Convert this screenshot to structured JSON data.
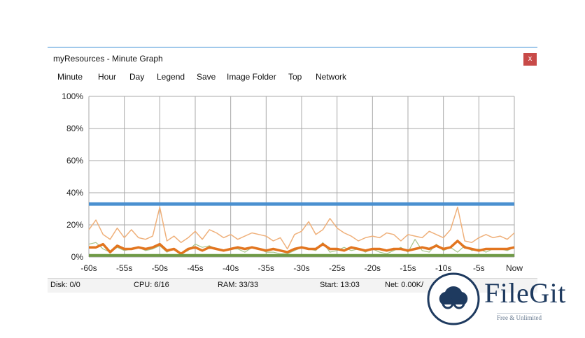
{
  "window": {
    "title": "myResources - Minute Graph",
    "close_label": "x"
  },
  "menu": [
    "Minute",
    "Hour",
    "Day",
    "Legend",
    "Save",
    "Image Folder",
    "Top",
    "Network"
  ],
  "colors": {
    "blue": "#4a90d0",
    "orange": "#e2751f",
    "light_orange": "#efb07a",
    "green": "#6f9a45",
    "light_green": "#a7c48a",
    "grid": "#a8a8a8"
  },
  "chart_data": {
    "type": "line",
    "ylim": [
      0,
      100
    ],
    "yticks": [
      "0%",
      "20%",
      "40%",
      "60%",
      "80%",
      "100%"
    ],
    "xticks": [
      "-60s",
      "-55s",
      "-50s",
      "-45s",
      "-40s",
      "-35s",
      "-30s",
      "-25s",
      "-20s",
      "-15s",
      "-10s",
      "-5s",
      "Now"
    ],
    "xlim": [
      -60,
      0
    ],
    "grid": true,
    "series": [
      {
        "values": [
          33,
          33,
          33,
          33,
          33,
          33,
          33,
          33,
          33,
          33,
          33,
          33,
          33,
          33,
          33,
          33,
          33,
          33,
          33,
          33,
          33,
          33,
          33,
          33,
          33,
          33,
          33,
          33,
          33,
          33,
          33,
          33,
          33,
          33,
          33,
          33,
          33,
          33,
          33,
          33,
          33,
          33,
          33,
          33,
          33,
          33,
          33,
          33,
          33,
          33,
          33,
          33,
          33,
          33,
          33,
          33,
          33,
          33,
          33,
          33,
          33
        ]
      },
      {
        "values": [
          17,
          23,
          14,
          11,
          18,
          12,
          17,
          12,
          11,
          13,
          31,
          10,
          13,
          9,
          12,
          16,
          11,
          17,
          15,
          12,
          14,
          11,
          13,
          15,
          14,
          13,
          10,
          12,
          5,
          14,
          16,
          22,
          14,
          17,
          24,
          18,
          15,
          13,
          10,
          12,
          13,
          12,
          15,
          14,
          10,
          14,
          13,
          12,
          16,
          14,
          12,
          17,
          31,
          10,
          9,
          12,
          14,
          12,
          13,
          11,
          15
        ]
      },
      {
        "values": [
          6,
          6,
          8,
          3,
          7,
          5,
          5,
          6,
          5,
          6,
          8,
          4,
          5,
          2,
          5,
          6,
          4,
          6,
          5,
          4,
          5,
          6,
          5,
          6,
          5,
          4,
          5,
          4,
          3,
          5,
          6,
          5,
          5,
          8,
          5,
          5,
          4,
          6,
          5,
          4,
          5,
          5,
          4,
          5,
          5,
          4,
          5,
          6,
          5,
          7,
          5,
          6,
          10,
          6,
          5,
          4,
          5,
          5,
          5,
          5,
          6
        ]
      },
      {
        "values": [
          8,
          9,
          5,
          3,
          6,
          4,
          5,
          6,
          4,
          5,
          7,
          3,
          5,
          2,
          4,
          8,
          6,
          7,
          5,
          4,
          5,
          5,
          3,
          6,
          5,
          3,
          3,
          2,
          2,
          4,
          6,
          5,
          4,
          9,
          3,
          4,
          6,
          4,
          5,
          3,
          5,
          3,
          2,
          4,
          6,
          3,
          11,
          4,
          3,
          8,
          4,
          6,
          3,
          7,
          4,
          5,
          3,
          5,
          5,
          4,
          6
        ]
      },
      {
        "values": [
          1,
          1,
          1,
          1,
          1,
          1,
          1,
          1,
          1,
          1,
          1,
          1,
          1,
          1,
          1,
          1,
          1,
          1,
          1,
          1,
          1,
          1,
          1,
          1,
          1,
          1,
          1,
          1,
          1,
          1,
          1,
          1,
          1,
          1,
          1,
          1,
          1,
          1,
          1,
          1,
          1,
          1,
          1,
          1,
          1,
          1,
          1,
          1,
          1,
          1,
          1,
          1,
          1,
          1,
          1,
          1,
          1,
          1,
          1,
          1,
          1
        ]
      }
    ]
  },
  "status": {
    "disk": "Disk: 0/0",
    "cpu": "CPU: 6/16",
    "ram": "RAM: 33/33",
    "start": "Start: 13:03",
    "net": "Net: 0.00K/"
  },
  "watermark": {
    "name": "FileGit",
    "tagline": "Free & Unlimited"
  }
}
